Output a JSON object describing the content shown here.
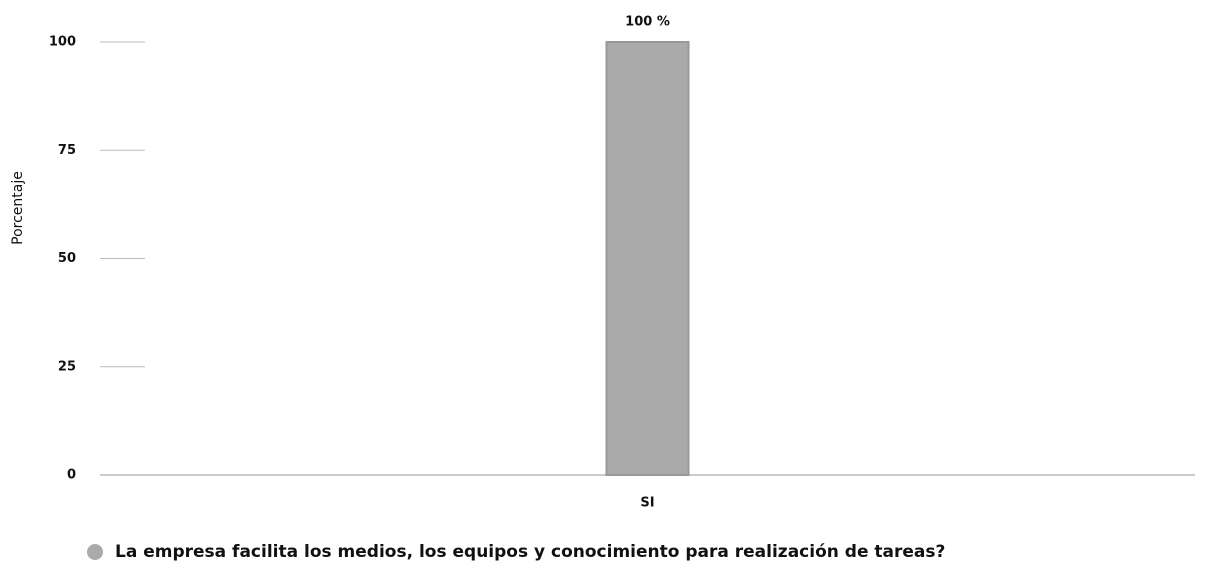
{
  "chart_data": {
    "type": "bar",
    "y_label": "Porcentaje",
    "categories": [
      "SI"
    ],
    "series": [
      {
        "name": "La empresa facilita los medios, los equipos y conocimiento para realización de tareas?",
        "color": "#aaaaaa",
        "values": [
          100
        ],
        "value_labels": [
          "100 %"
        ]
      }
    ],
    "ylim": [
      0,
      100
    ],
    "yticks": [
      0,
      25,
      50,
      75,
      100
    ],
    "legend": "bottom"
  }
}
